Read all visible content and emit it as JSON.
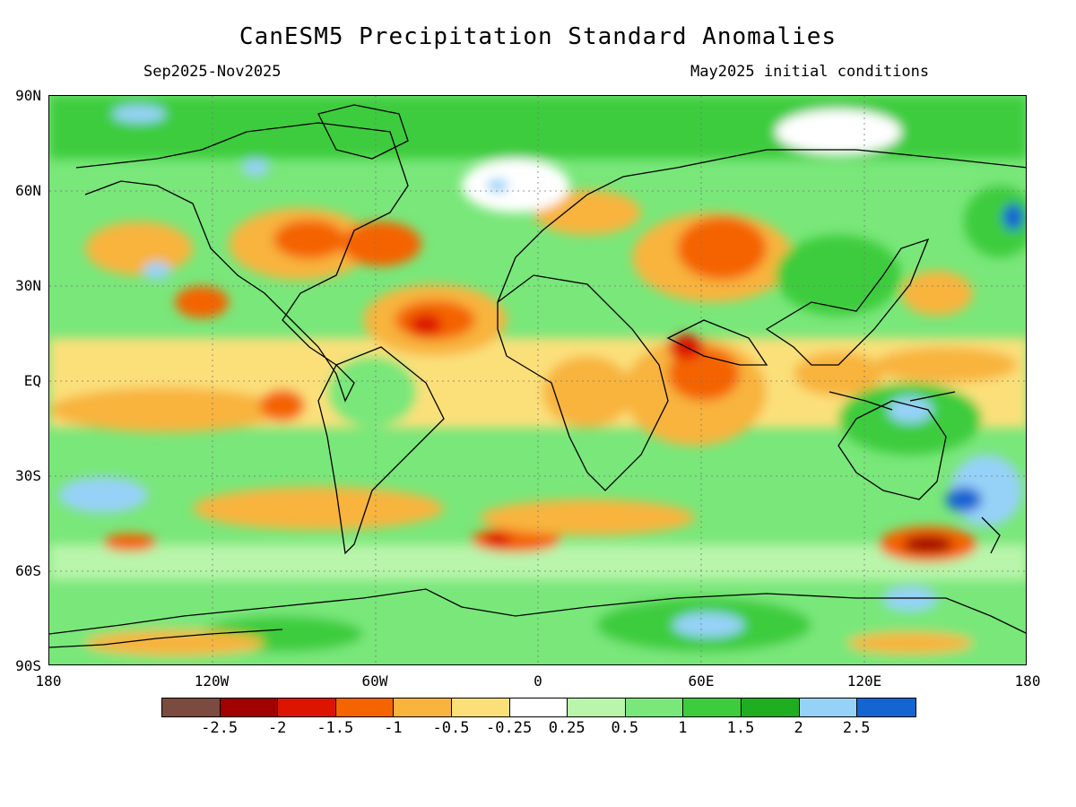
{
  "header": {
    "title": "CanESM5 Precipitation Standard Anomalies",
    "period": "Sep2025-Nov2025",
    "init": "May2025 initial conditions"
  },
  "axes": {
    "lat_labels": [
      "90N",
      "60N",
      "30N",
      "EQ",
      "30S",
      "60S",
      "90S"
    ],
    "lon_labels": [
      "180",
      "120W",
      "60W",
      "0",
      "60E",
      "120E",
      "180"
    ]
  },
  "legend": {
    "colors": [
      "#7a4b3e",
      "#a30000",
      "#dd1500",
      "#f46400",
      "#f8b43c",
      "#fbe07a",
      "#ffffff",
      "#b9f5ab",
      "#79e77a",
      "#3ccc3c",
      "#1fae1f",
      "#96d2f8",
      "#1464d2"
    ],
    "labels": [
      "-2.5",
      "-2",
      "-1.5",
      "-1",
      "-0.5",
      "-0.25",
      "0.25",
      "0.5",
      "1",
      "1.5",
      "2",
      "2.5"
    ]
  }
}
